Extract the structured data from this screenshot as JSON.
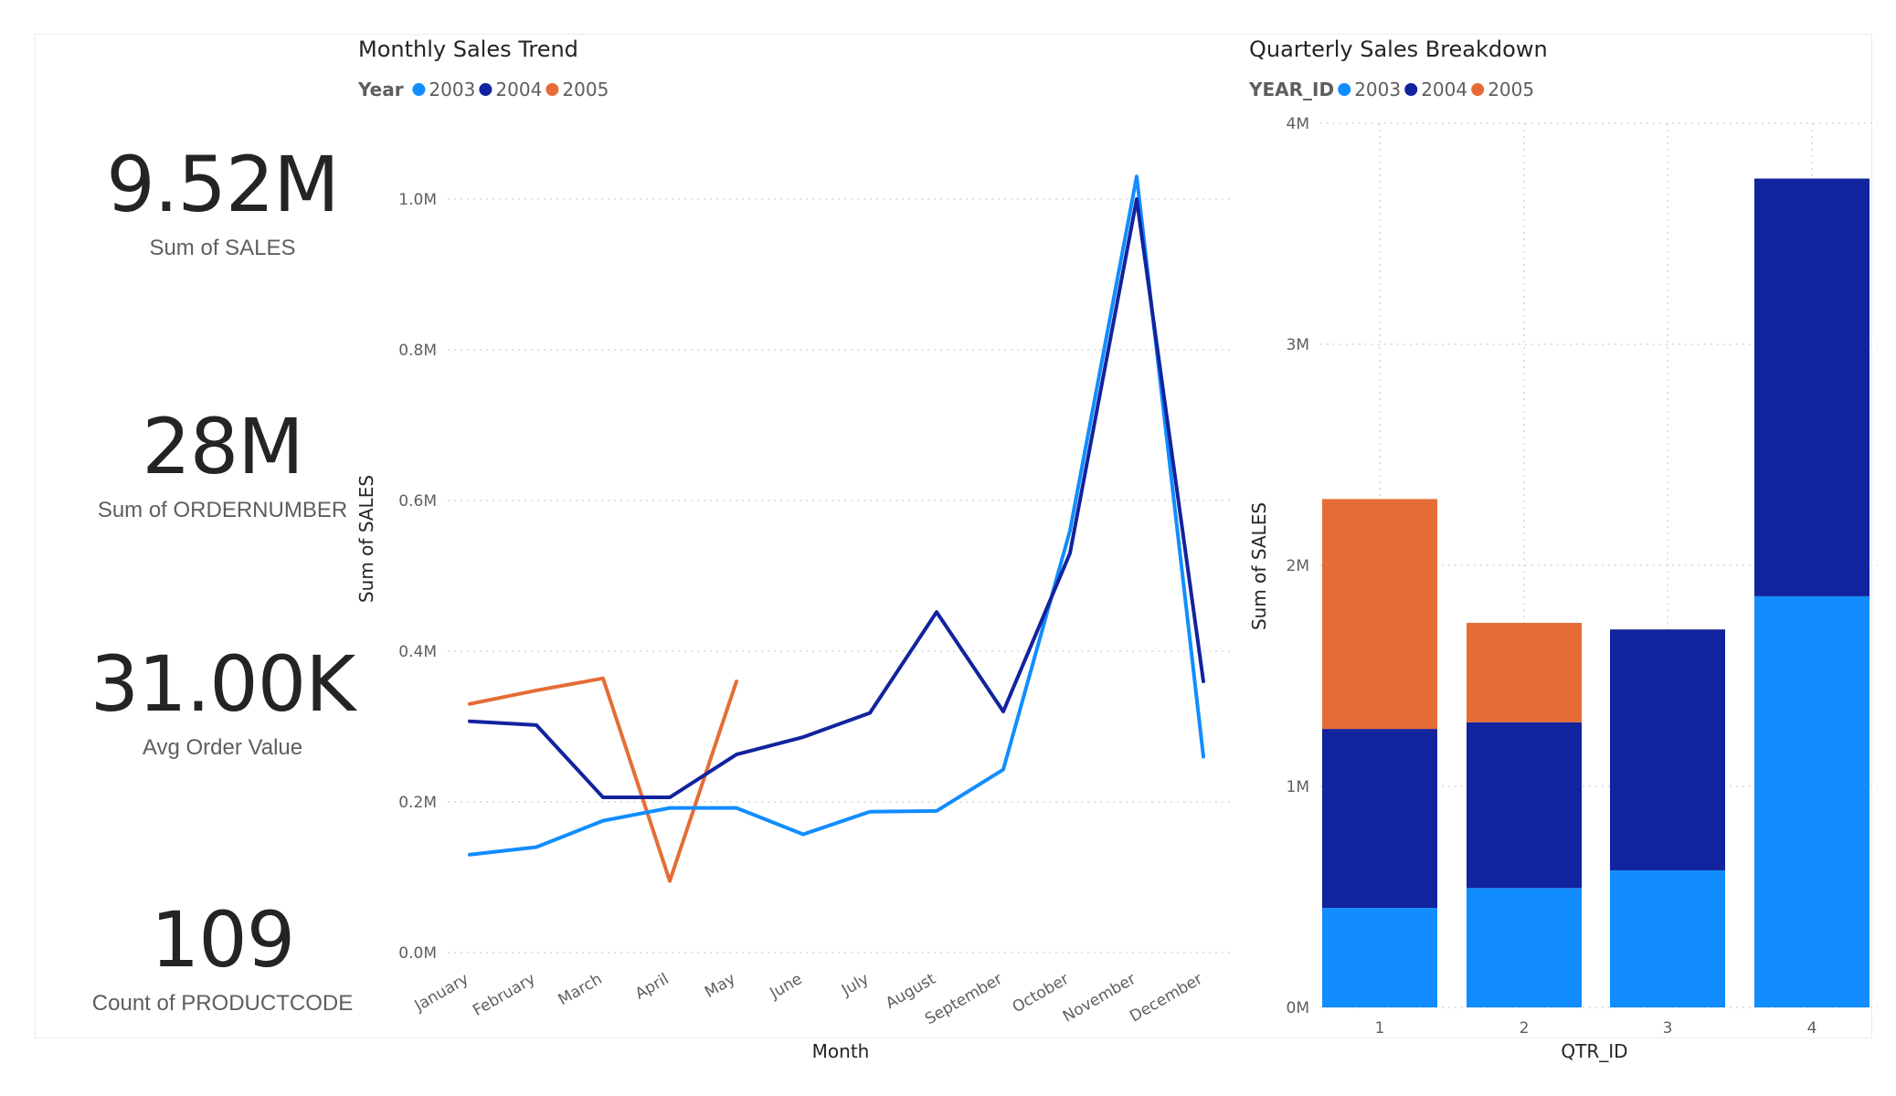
{
  "kpis": [
    {
      "value": "9.52M",
      "label": "Sum of SALES"
    },
    {
      "value": "28M",
      "label": "Sum of ORDERNUMBER"
    },
    {
      "value": "31.00K",
      "label": "Avg Order Value"
    },
    {
      "value": "109",
      "label": "Count of PRODUCTCODE"
    }
  ],
  "colors": {
    "2003": "#118dff",
    "2004": "#12239e",
    "2005": "#e66c37"
  },
  "chart_data": [
    {
      "type": "line",
      "title": "Monthly Sales Trend",
      "legend_title": "Year",
      "legend_position": "top-left",
      "xlabel": "Month",
      "ylabel": "Sum of SALES",
      "categories": [
        "January",
        "February",
        "March",
        "April",
        "May",
        "June",
        "July",
        "August",
        "September",
        "October",
        "November",
        "December"
      ],
      "y_ticks": [
        {
          "value": 0,
          "label": "0.0M"
        },
        {
          "value": 0.2,
          "label": "0.2M"
        },
        {
          "value": 0.4,
          "label": "0.4M"
        },
        {
          "value": 0.6,
          "label": "0.6M"
        },
        {
          "value": 0.8,
          "label": "0.8M"
        },
        {
          "value": 1.0,
          "label": "1.0M"
        }
      ],
      "ylim": [
        0,
        1.1
      ],
      "y_unit": "M",
      "grid": true,
      "series": [
        {
          "name": "2003",
          "values": [
            0.13,
            0.14,
            0.175,
            0.192,
            0.192,
            0.157,
            0.187,
            0.188,
            0.243,
            0.56,
            1.03,
            0.26
          ]
        },
        {
          "name": "2004",
          "values": [
            0.307,
            0.302,
            0.206,
            0.206,
            0.263,
            0.286,
            0.318,
            0.452,
            0.32,
            0.53,
            1.0,
            0.36
          ]
        },
        {
          "name": "2005",
          "values": [
            0.33,
            0.348,
            0.364,
            0.095,
            0.36,
            null,
            null,
            null,
            null,
            null,
            null,
            null
          ]
        }
      ]
    },
    {
      "type": "bar",
      "stacked": true,
      "title": "Quarterly Sales Breakdown",
      "legend_title": "YEAR_ID",
      "legend_position": "top-left",
      "xlabel": "QTR_ID",
      "ylabel": "Sum of SALES",
      "categories": [
        "1",
        "2",
        "3",
        "4"
      ],
      "y_ticks": [
        {
          "value": 0,
          "label": "0M"
        },
        {
          "value": 1,
          "label": "1M"
        },
        {
          "value": 2,
          "label": "2M"
        },
        {
          "value": 3,
          "label": "3M"
        },
        {
          "value": 4,
          "label": "4M"
        }
      ],
      "ylim": [
        0,
        4
      ],
      "y_unit": "M",
      "grid": true,
      "series": [
        {
          "name": "2003",
          "values": [
            0.45,
            0.54,
            0.62,
            1.86
          ]
        },
        {
          "name": "2004",
          "values": [
            0.81,
            0.75,
            1.09,
            1.89
          ]
        },
        {
          "name": "2005",
          "values": [
            1.04,
            0.45,
            0,
            0
          ]
        }
      ]
    }
  ]
}
